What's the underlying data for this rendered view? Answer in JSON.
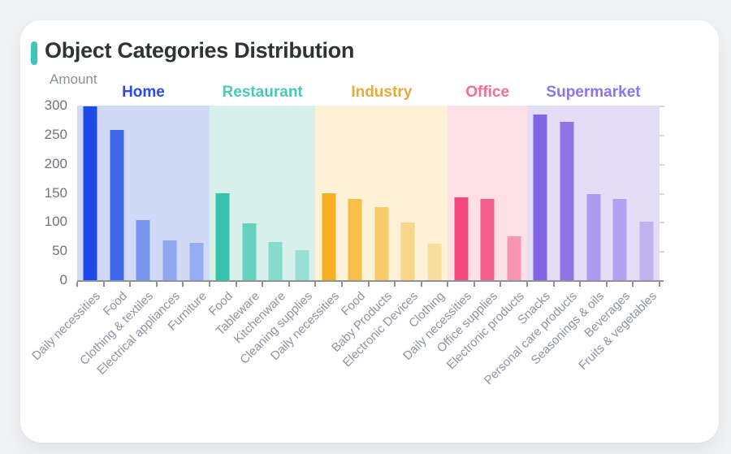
{
  "card": {
    "title": "Object Categories Distribution",
    "accent_color": "#3ec6b6"
  },
  "chart_data": {
    "type": "bar",
    "title": "Object Categories Distribution",
    "xlabel": "",
    "ylabel": "Amount",
    "ylim": [
      0,
      300
    ],
    "yticks": [
      0,
      50,
      100,
      150,
      200,
      250,
      300
    ],
    "grid": false,
    "legend_position": "group-headers-top",
    "groups": [
      {
        "name": "Home",
        "label_color": "#2c49ea",
        "color": "#1c4ae8",
        "panel_color": "#d0daf6",
        "alphas": [
          1,
          0.8,
          0.48,
          0.35,
          0.32
        ],
        "items": [
          {
            "label": "Daily necessities",
            "value": 299
          },
          {
            "label": "Food",
            "value": 258
          },
          {
            "label": "Clothing & textiles",
            "value": 103
          },
          {
            "label": "Electrical appliances",
            "value": 69
          },
          {
            "label": "Furniture",
            "value": 64
          }
        ]
      },
      {
        "name": "Restaurant",
        "label_color": "#45cab9",
        "color": "#35c3ac",
        "panel_color": "#d8f0ec",
        "alphas": [
          1,
          0.7,
          0.5,
          0.38
        ],
        "items": [
          {
            "label": "Food",
            "value": 149
          },
          {
            "label": "Tableware",
            "value": 97
          },
          {
            "label": "Kitchenware",
            "value": 65
          },
          {
            "label": "Cleaning supplies",
            "value": 51
          }
        ]
      },
      {
        "name": "Industry",
        "label_color": "#e8a93c",
        "color": "#f6b01f",
        "panel_color": "#fdf1d7",
        "alphas": [
          1,
          0.78,
          0.6,
          0.4,
          0.3
        ],
        "items": [
          {
            "label": "Daily necessities",
            "value": 150
          },
          {
            "label": "Food",
            "value": 139
          },
          {
            "label": "Baby Products",
            "value": 126
          },
          {
            "label": "Electronic Devices",
            "value": 99
          },
          {
            "label": "Clothing",
            "value": 63
          }
        ]
      },
      {
        "name": "Office",
        "label_color": "#f56d96",
        "color": "#f5487f",
        "panel_color": "#fddfe8",
        "alphas": [
          1,
          0.85,
          0.5
        ],
        "items": [
          {
            "label": "Daily necessities",
            "value": 142
          },
          {
            "label": "Office supplies",
            "value": 139
          },
          {
            "label": "Electronic products",
            "value": 75
          }
        ]
      },
      {
        "name": "Supermarket",
        "label_color": "#8c74f0",
        "color": "#8165e5",
        "panel_color": "#e3ddf6",
        "alphas": [
          1,
          0.88,
          0.55,
          0.5,
          0.36
        ],
        "items": [
          {
            "label": "Snacks",
            "value": 285
          },
          {
            "label": "Personal care products",
            "value": 272
          },
          {
            "label": "Seasonings & oils",
            "value": 148
          },
          {
            "label": "Beverages",
            "value": 140
          },
          {
            "label": "Fruits & vegetables",
            "value": 101
          }
        ]
      }
    ]
  }
}
